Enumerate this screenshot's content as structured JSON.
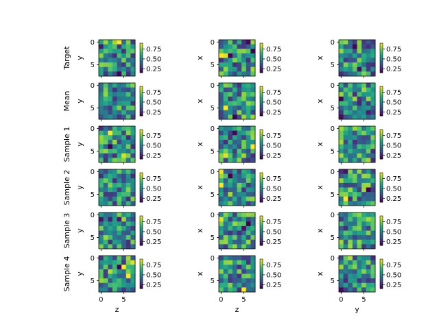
{
  "chart_data": {
    "type": "heatmap",
    "grid": "6x3 panels, each 8x8 cells",
    "colormap": "viridis",
    "vmin": 0.15,
    "vmax": 0.9,
    "row_labels": [
      "Target",
      "Mean",
      "Sample 1",
      "Sample 2",
      "Sample 3",
      "Sample 4"
    ],
    "col_ylabels": [
      "y",
      "x",
      "x"
    ],
    "col_xlabels": [
      "z",
      "z",
      "y"
    ],
    "axis_ticks": [
      "0",
      "5"
    ],
    "colorbar_ticks": [
      "0.75",
      "0.50",
      "0.25"
    ],
    "colorbar_tick_values": [
      0.75,
      0.5,
      0.25
    ],
    "seed": 7
  }
}
